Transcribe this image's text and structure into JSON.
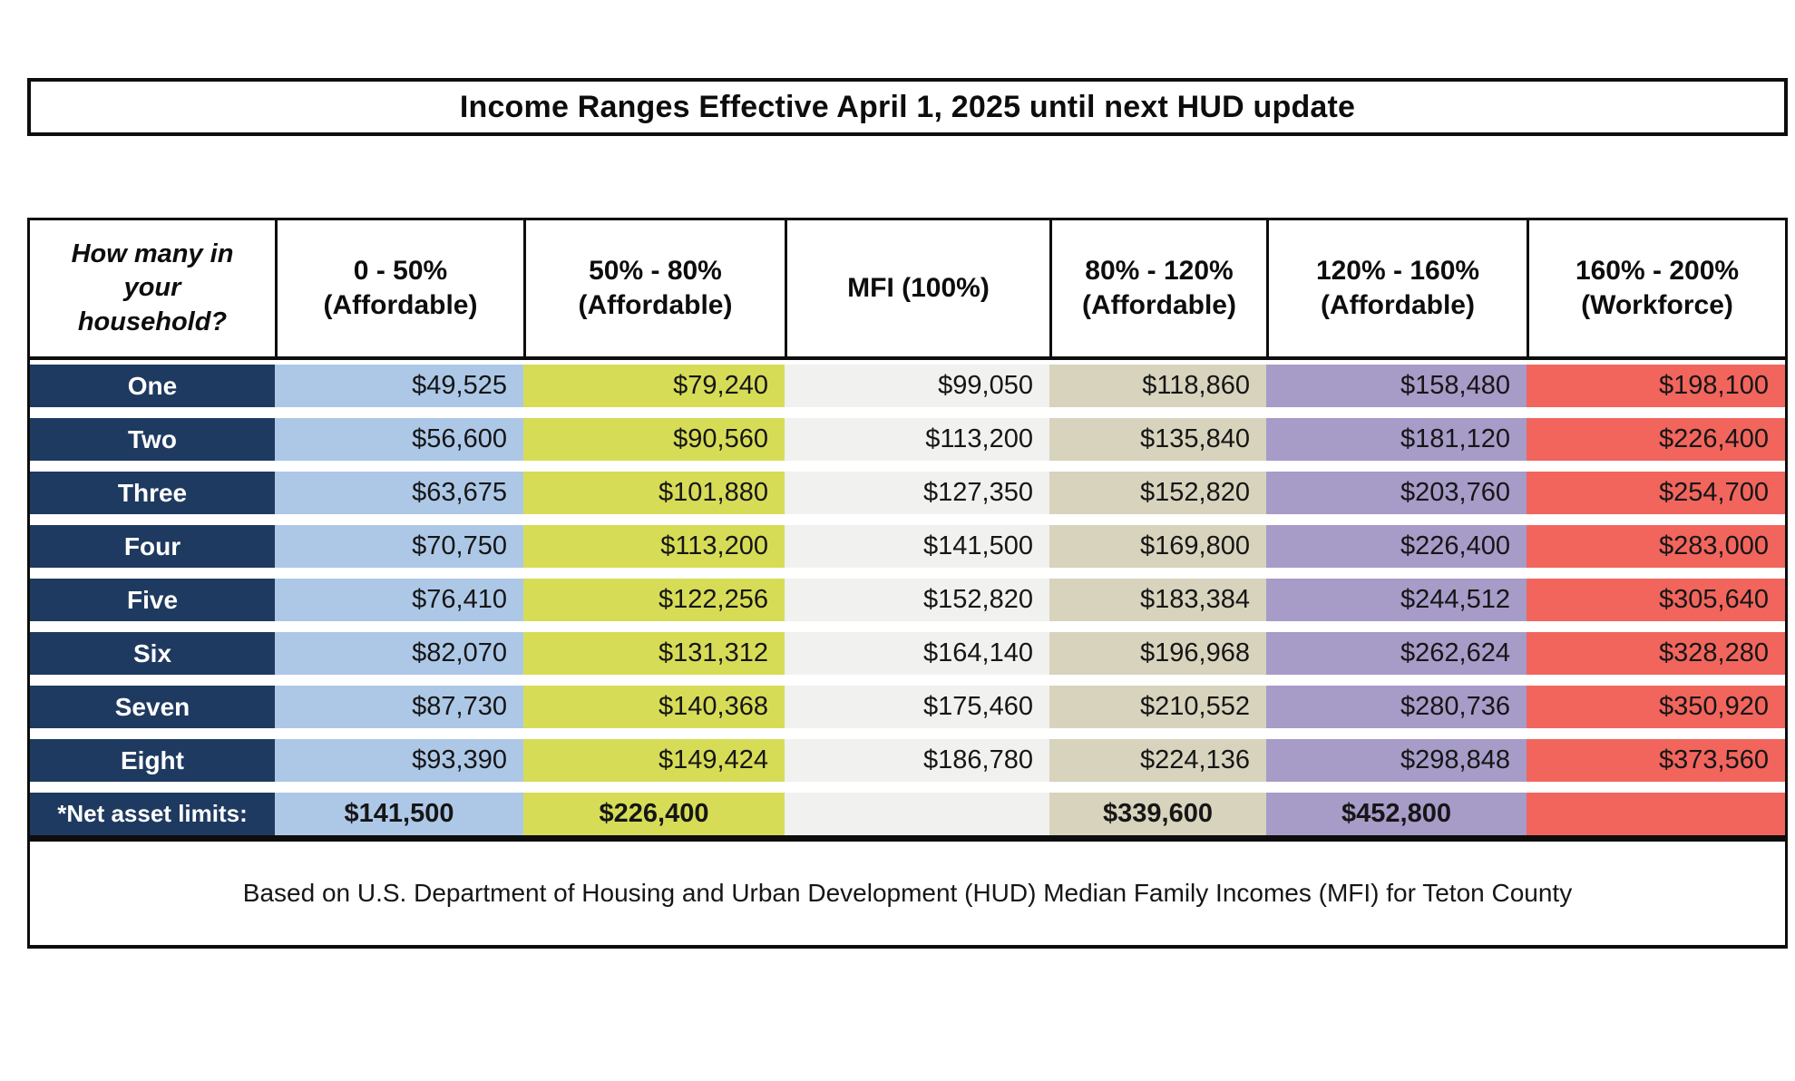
{
  "chart_data": {
    "type": "table",
    "title": "Income Ranges Effective April 1, 2025 until next HUD update",
    "columns": [
      "How many in your household?",
      "0 - 50% (Affordable)",
      "50% - 80% (Affordable)",
      "MFI (100%)",
      "80% - 120% (Affordable)",
      "120% - 160% (Affordable)",
      "160% - 200% (Workforce)"
    ],
    "rows": [
      {
        "label": "One",
        "values": [
          "$49,525",
          "$79,240",
          "$99,050",
          "$118,860",
          "$158,480",
          "$198,100"
        ]
      },
      {
        "label": "Two",
        "values": [
          "$56,600",
          "$90,560",
          "$113,200",
          "$135,840",
          "$181,120",
          "$226,400"
        ]
      },
      {
        "label": "Three",
        "values": [
          "$63,675",
          "$101,880",
          "$127,350",
          "$152,820",
          "$203,760",
          "$254,700"
        ]
      },
      {
        "label": "Four",
        "values": [
          "$70,750",
          "$113,200",
          "$141,500",
          "$169,800",
          "$226,400",
          "$283,000"
        ]
      },
      {
        "label": "Five",
        "values": [
          "$76,410",
          "$122,256",
          "$152,820",
          "$183,384",
          "$244,512",
          "$305,640"
        ]
      },
      {
        "label": "Six",
        "values": [
          "$82,070",
          "$131,312",
          "$164,140",
          "$196,968",
          "$262,624",
          "$328,280"
        ]
      },
      {
        "label": "Seven",
        "values": [
          "$87,730",
          "$140,368",
          "$175,460",
          "$210,552",
          "$280,736",
          "$350,920"
        ]
      },
      {
        "label": "Eight",
        "values": [
          "$93,390",
          "$149,424",
          "$186,780",
          "$224,136",
          "$298,848",
          "$373,560"
        ]
      },
      {
        "label": "*Net asset limits:",
        "values": [
          "$141,500",
          "$226,400",
          "",
          "$339,600",
          "$452,800",
          ""
        ],
        "is_net_asset_row": true
      }
    ],
    "footnote": "Based on U.S. Department of Housing and Urban Development (HUD) Median Family Incomes (MFI) for Teton County"
  },
  "header_display": [
    "How many in your household?",
    "0 - 50%\n(Affordable)",
    "50% - 80%\n(Affordable)",
    "MFI (100%)",
    "80% - 120%\n(Affordable)",
    "120% - 160%\n(Affordable)",
    "160% - 200%\n(Workforce)"
  ],
  "colors": {
    "border": "#0d0d0d",
    "row_label_bg": "#1f3a60",
    "row_label_text": "#ffffff",
    "column_fills": [
      "#adc8e7",
      "#d7dc57",
      "#f1f1ef",
      "#d8d3bd",
      "#a79bc8",
      "#f1655d"
    ]
  }
}
